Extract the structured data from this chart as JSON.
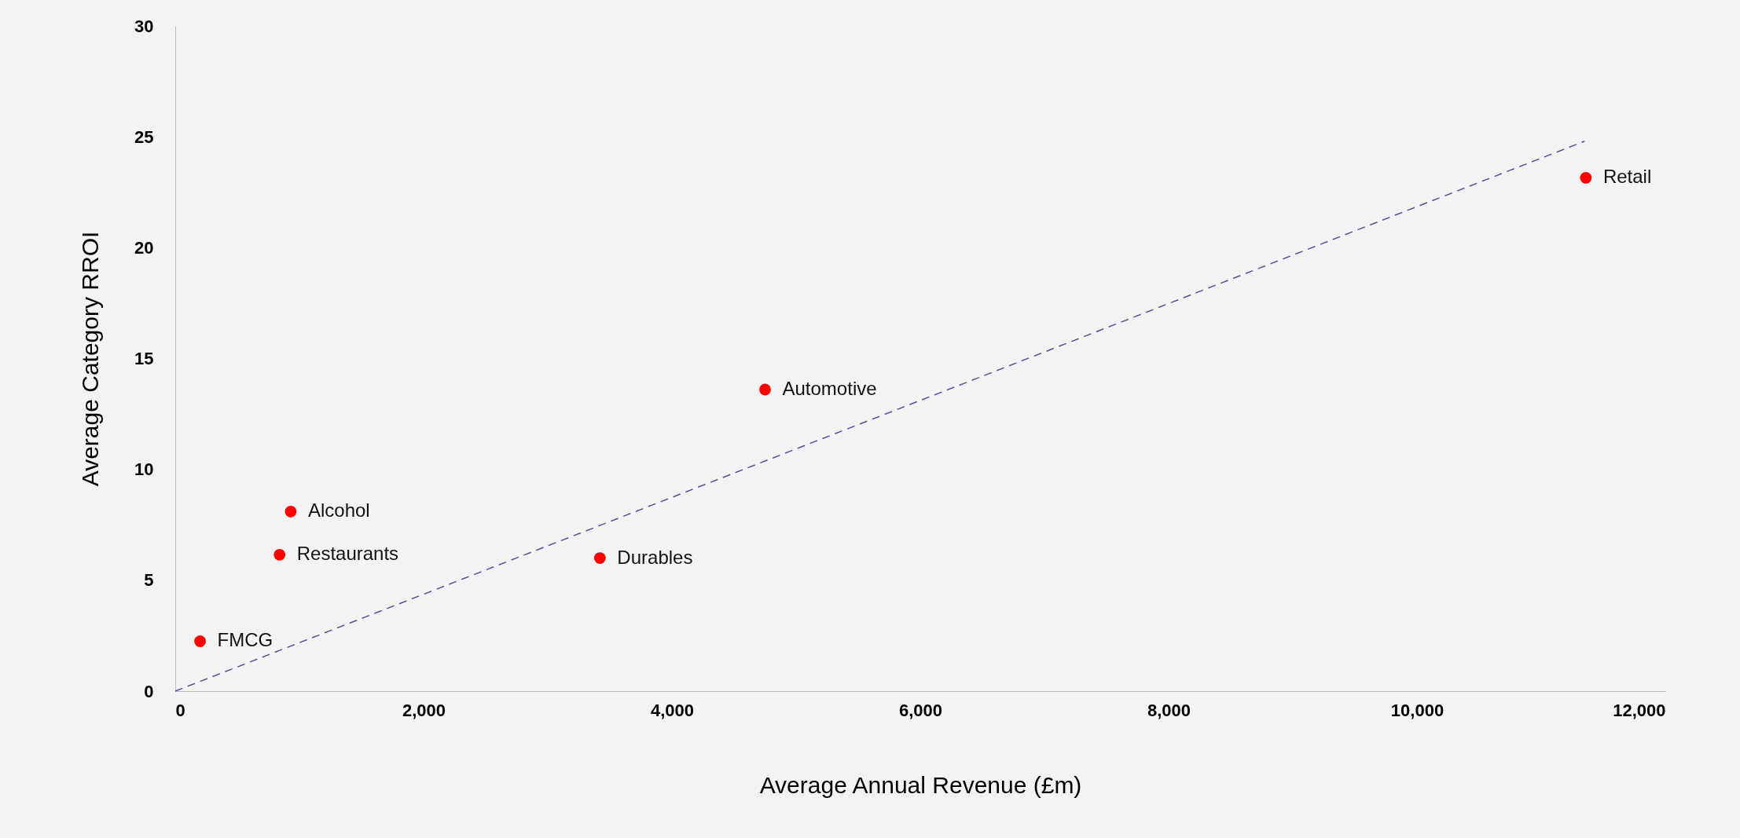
{
  "chart_data": {
    "type": "scatter",
    "xlabel": "Average Annual Revenue (£m)",
    "ylabel": "Average Category RROI",
    "series": [
      {
        "type": "scatter",
        "color": "#ff0000",
        "marker": "circle",
        "x": [
          200,
          840,
          930,
          3420,
          4750,
          11360
        ],
        "values": [
          2.25,
          6.15,
          8.1,
          6.0,
          13.6,
          23.15
        ]
      },
      {
        "type": "line",
        "color": "#5b4f9c",
        "line_style": "dashed",
        "x": [
          0,
          11350
        ],
        "values": [
          0,
          24.8
        ]
      }
    ],
    "annotations": [
      {
        "text": "FMCG",
        "x": 200,
        "y": 2.25
      },
      {
        "text": "Restaurants",
        "x": 840,
        "y": 6.15
      },
      {
        "text": "Alcohol",
        "x": 930,
        "y": 8.1
      },
      {
        "text": "Durables",
        "x": 3420,
        "y": 6.0
      },
      {
        "text": "Automotive",
        "x": 4750,
        "y": 13.6
      },
      {
        "text": "Retail",
        "x": 11360,
        "y": 23.15
      }
    ],
    "xlim": [
      0,
      12000
    ],
    "xticks": [
      0,
      {
        "value": 2000,
        "label": "2,000"
      },
      {
        "value": 4000,
        "label": "4,000"
      },
      {
        "value": 6000,
        "label": "6,000"
      },
      {
        "value": 8000,
        "label": "8,000"
      },
      {
        "value": 10000,
        "label": "10,000"
      },
      {
        "value": 12000,
        "label": "12,000"
      }
    ],
    "ylim": [
      0,
      30
    ],
    "yticks": [
      0,
      5,
      10,
      15,
      20,
      25,
      30
    ],
    "grid": false
  }
}
